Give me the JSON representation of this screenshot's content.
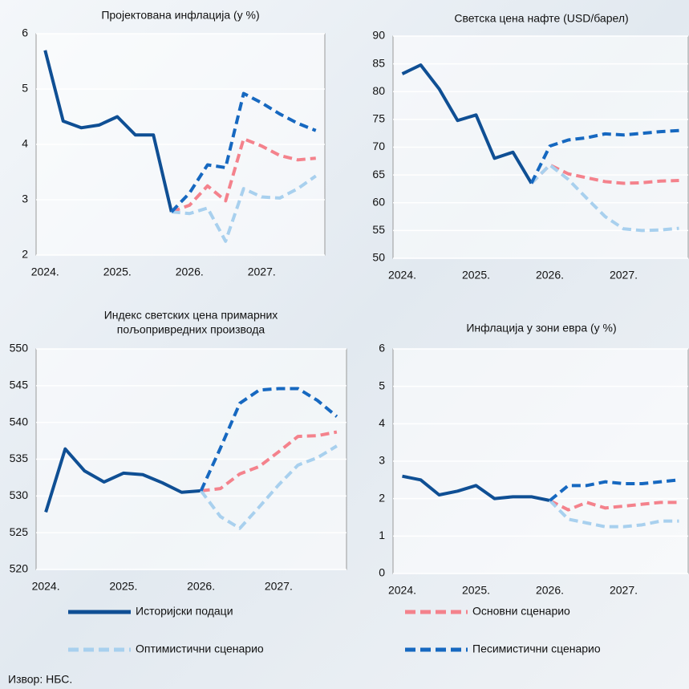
{
  "chart_data": [
    {
      "type": "line",
      "title": [
        "Пројектована инфлација (у %)"
      ],
      "categories": [
        "2024.",
        null,
        null,
        null,
        "2025.",
        null,
        null,
        null,
        "2026.",
        null,
        null,
        null,
        "2027.",
        null,
        null,
        null
      ],
      "ylim": [
        2,
        6
      ],
      "yticks": [
        2,
        3,
        4,
        5,
        6
      ],
      "grid": true,
      "series": [
        {
          "name": "Историјски подаци",
          "color": "#0f4f94",
          "dash": false,
          "values": [
            5.7,
            4.42,
            4.3,
            4.35,
            4.5,
            4.17,
            4.17,
            2.78,
            null,
            null,
            null,
            null,
            null,
            null,
            null,
            null
          ]
        },
        {
          "name": "Основни сценарио",
          "color": "#f4828c",
          "dash": true,
          "values": [
            null,
            null,
            null,
            null,
            null,
            null,
            null,
            2.78,
            2.9,
            3.25,
            2.98,
            4.1,
            3.97,
            3.8,
            3.72,
            3.75
          ]
        },
        {
          "name": "Оптимистични сценарио",
          "color": "#a8d0ee",
          "dash": true,
          "values": [
            null,
            null,
            null,
            null,
            null,
            null,
            null,
            2.78,
            2.75,
            2.85,
            2.25,
            3.2,
            3.05,
            3.03,
            3.2,
            3.43
          ]
        },
        {
          "name": "Песимистични сценарио",
          "color": "#1668c0",
          "dash": true,
          "values": [
            null,
            null,
            null,
            null,
            null,
            null,
            null,
            2.78,
            3.12,
            3.63,
            3.58,
            4.92,
            4.75,
            4.55,
            4.38,
            4.25
          ]
        }
      ]
    },
    {
      "type": "line",
      "title": [
        "Светска цена нафте (USD/барел)"
      ],
      "categories": [
        "2024.",
        null,
        null,
        null,
        "2025.",
        null,
        null,
        null,
        "2026.",
        null,
        null,
        null,
        "2027.",
        null,
        null,
        null
      ],
      "ylim": [
        50,
        90
      ],
      "yticks": [
        50,
        55,
        60,
        65,
        70,
        75,
        80,
        85,
        90
      ],
      "grid": true,
      "series": [
        {
          "color": "#0f4f94",
          "dash": false,
          "values": [
            83.2,
            84.8,
            80.5,
            74.8,
            75.8,
            68,
            69.1,
            63.5,
            null,
            null,
            null,
            null,
            null,
            null,
            null,
            null
          ]
        },
        {
          "color": "#f4828c",
          "dash": true,
          "values": [
            null,
            null,
            null,
            null,
            null,
            null,
            null,
            63.5,
            66.8,
            65.2,
            64.5,
            63.8,
            63.5,
            63.6,
            63.9,
            64
          ]
        },
        {
          "color": "#a8d0ee",
          "dash": true,
          "values": [
            null,
            null,
            null,
            null,
            null,
            null,
            null,
            63.5,
            66.8,
            64.2,
            60.8,
            57.5,
            55.3,
            55,
            55.1,
            55.4
          ]
        },
        {
          "color": "#1668c0",
          "dash": true,
          "values": [
            null,
            null,
            null,
            null,
            null,
            null,
            null,
            63.5,
            70.2,
            71.3,
            71.7,
            72.4,
            72.2,
            72.5,
            72.8,
            73
          ]
        }
      ]
    },
    {
      "type": "line",
      "title": [
        "Индекс светских цена примарних",
        "пољопривредних производа"
      ],
      "categories": [
        "2024.",
        null,
        null,
        null,
        "2025.",
        null,
        null,
        null,
        "2026.",
        null,
        null,
        null,
        "2027.",
        null,
        null,
        null
      ],
      "ylim": [
        520,
        550
      ],
      "yticks": [
        520,
        525,
        530,
        535,
        540,
        545,
        550
      ],
      "grid": true,
      "series": [
        {
          "color": "#0f4f94",
          "dash": false,
          "values": [
            527.8,
            536.4,
            533.4,
            531.9,
            533.1,
            532.9,
            531.8,
            530.5,
            530.7,
            null,
            null,
            null,
            null,
            null,
            null,
            null
          ]
        },
        {
          "color": "#f4828c",
          "dash": true,
          "values": [
            null,
            null,
            null,
            null,
            null,
            null,
            null,
            null,
            530.7,
            531,
            533,
            534,
            536,
            538.1,
            538.2,
            538.7
          ]
        },
        {
          "color": "#a8d0ee",
          "dash": true,
          "values": [
            null,
            null,
            null,
            null,
            null,
            null,
            null,
            null,
            530.7,
            527.2,
            525.6,
            528.5,
            531.5,
            534.2,
            535.2,
            536.8
          ]
        },
        {
          "color": "#1668c0",
          "dash": true,
          "values": [
            null,
            null,
            null,
            null,
            null,
            null,
            null,
            null,
            530.7,
            536.5,
            542.6,
            544.4,
            544.6,
            544.6,
            543,
            540.8
          ]
        }
      ]
    },
    {
      "type": "line",
      "title": [
        "Инфлација у зони евра (у %)"
      ],
      "categories": [
        "2024.",
        null,
        null,
        null,
        "2025.",
        null,
        null,
        null,
        "2026.",
        null,
        null,
        null,
        "2027.",
        null,
        null,
        null
      ],
      "ylim": [
        0,
        6
      ],
      "yticks": [
        0,
        1,
        2,
        3,
        4,
        5,
        6
      ],
      "grid": true,
      "series": [
        {
          "color": "#0f4f94",
          "dash": false,
          "values": [
            2.6,
            2.5,
            2.1,
            2.2,
            2.35,
            2,
            2.05,
            2.05,
            1.95,
            null,
            null,
            null,
            null,
            null,
            null,
            null
          ]
        },
        {
          "color": "#f4828c",
          "dash": true,
          "values": [
            null,
            null,
            null,
            null,
            null,
            null,
            null,
            null,
            1.95,
            1.7,
            1.9,
            1.75,
            1.8,
            1.85,
            1.9,
            1.9
          ]
        },
        {
          "color": "#a8d0ee",
          "dash": true,
          "values": [
            null,
            null,
            null,
            null,
            null,
            null,
            null,
            null,
            1.95,
            1.45,
            1.35,
            1.25,
            1.25,
            1.3,
            1.4,
            1.4
          ]
        },
        {
          "color": "#1668c0",
          "dash": true,
          "values": [
            null,
            null,
            null,
            null,
            null,
            null,
            null,
            null,
            1.95,
            2.35,
            2.35,
            2.45,
            2.4,
            2.4,
            2.45,
            2.5
          ]
        }
      ]
    }
  ],
  "source": "Извор: НБС."
}
